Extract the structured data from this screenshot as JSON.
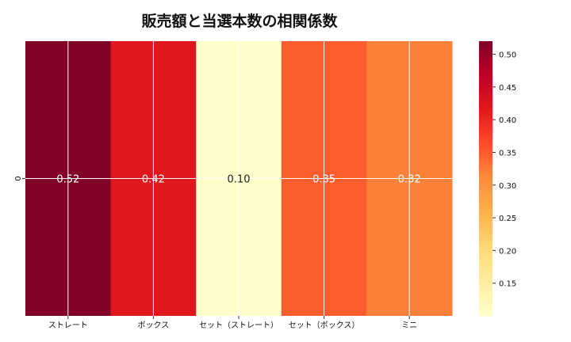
{
  "chart_data": {
    "type": "heatmap",
    "title": "販売額と当選本数の相関係数",
    "row_labels": [
      "0"
    ],
    "categories": [
      "ストレート",
      "ボックス",
      "セット（ストレート）",
      "セット（ボックス）",
      "ミニ"
    ],
    "values": [
      [
        0.52,
        0.42,
        0.1,
        0.35,
        0.32
      ]
    ],
    "annotations": [
      "0.52",
      "0.42",
      "0.10",
      "0.35",
      "0.32"
    ],
    "colormap": "YlOrRd",
    "colormap_stops": [
      "#ffffcc",
      "#ffeda0",
      "#fed976",
      "#feb24c",
      "#fd8d3c",
      "#fc4e2a",
      "#e31a1c",
      "#bd0026",
      "#800026"
    ],
    "color_range": [
      0.1,
      0.52
    ],
    "colorbar_ticks": [
      "0.15",
      "0.20",
      "0.25",
      "0.30",
      "0.35",
      "0.40",
      "0.45",
      "0.50"
    ],
    "grid": true
  }
}
